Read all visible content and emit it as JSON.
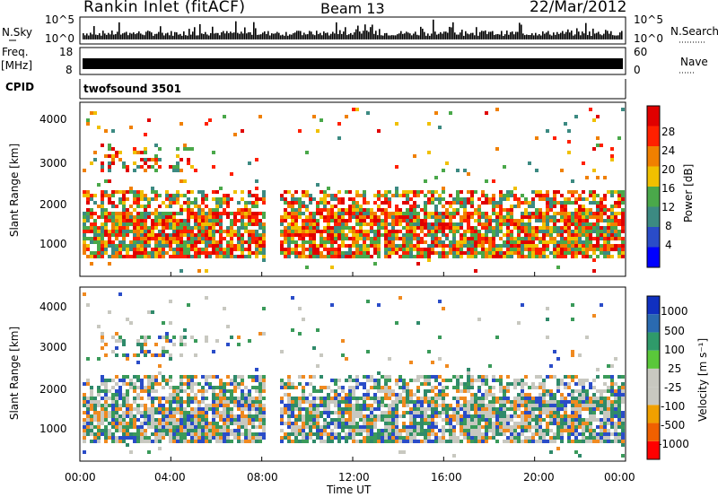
{
  "header": {
    "station": "Rankin Inlet (fitACF)",
    "beam": "Beam 13",
    "date": "22/Mar/2012"
  },
  "aux_panels": {
    "nsky_label": "N.Sky",
    "nsky_ticks": [
      "10^5",
      "10^0"
    ],
    "nsearch_label": "N.Search",
    "nsearch_ticks": [
      "10^5",
      "10^0"
    ],
    "freq_label": "Freq.",
    "freq_unit": "[MHz]",
    "freq_ticks": [
      "18",
      "8"
    ],
    "nave_label": "Nave",
    "nave_ticks": [
      "60",
      "0"
    ],
    "cpid_label": "CPID",
    "cpid_value": "twofsound 3501"
  },
  "chart_data": [
    {
      "type": "heatmap",
      "name": "power",
      "ylabel": "Slant Range [km]",
      "xlabel": "",
      "ylim": [
        180,
        4500
      ],
      "yticks": [
        "1000",
        "2000",
        "3000",
        "4000"
      ],
      "colorbar_label": "Power [dB]",
      "colorbar_ticks": [
        "4",
        "8",
        "12",
        "16",
        "20",
        "24",
        "28"
      ],
      "colorbar_colors": [
        "#0000ff",
        "#2a4cc8",
        "#3c8a82",
        "#4aa84a",
        "#f0c000",
        "#f08000",
        "#ff2000",
        "#e00000"
      ]
    },
    {
      "type": "heatmap",
      "name": "velocity",
      "ylabel": "Slant Range [km]",
      "xlabel": "Time UT",
      "ylim": [
        180,
        4500
      ],
      "yticks": [
        "1000",
        "2000",
        "3000",
        "4000"
      ],
      "xticks": [
        "00:00",
        "04:00",
        "08:00",
        "12:00",
        "16:00",
        "20:00",
        "00:00"
      ],
      "colorbar_label": "Velocity [m s⁻¹]",
      "colorbar_ticks": [
        "1000",
        "500",
        "100",
        "25",
        "-25",
        "-100",
        "-500",
        "-1000"
      ],
      "colorbar_colors": [
        "#1030c0",
        "#2a6ab0",
        "#2f9a6a",
        "#5ac83a",
        "#c8c8c0",
        "#c8c8c0",
        "#f0a000",
        "#f06000",
        "#ff0000"
      ]
    }
  ]
}
